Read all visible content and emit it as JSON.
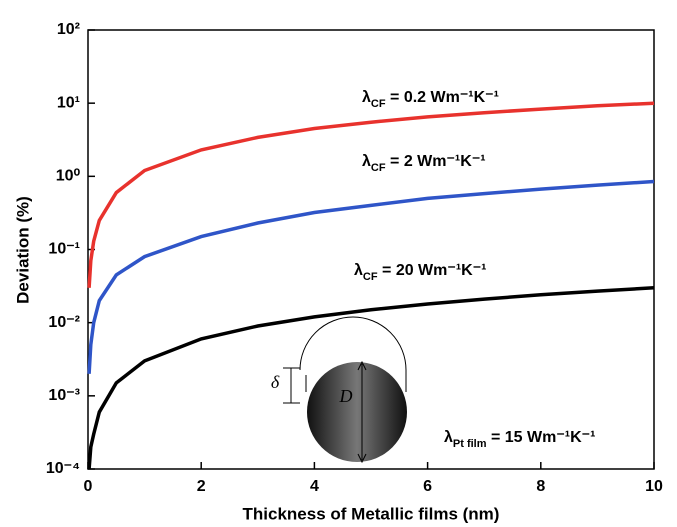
{
  "chart_data": {
    "type": "line",
    "x_label": "Thickness of Metallic films (nm)",
    "y_label": "Deviation (%)",
    "log_y": true,
    "xlim": [
      0,
      10
    ],
    "xticks": [
      0,
      2,
      4,
      6,
      8,
      10
    ],
    "ylim": [
      0.0001,
      100
    ],
    "yticks": [
      {
        "value": 0.0001,
        "label": "10⁻⁴"
      },
      {
        "value": 0.001,
        "label": "10⁻³"
      },
      {
        "value": 0.01,
        "label": "10⁻²"
      },
      {
        "value": 0.1,
        "label": "10⁻¹"
      },
      {
        "value": 1,
        "label": "10⁰"
      },
      {
        "value": 10,
        "label": "10¹"
      },
      {
        "value": 100,
        "label": "10²"
      }
    ],
    "x": [
      0.02,
      0.05,
      0.1,
      0.2,
      0.5,
      1,
      2,
      3,
      4,
      5,
      6,
      7,
      8,
      9,
      10
    ],
    "series": [
      {
        "color": "#e8322d",
        "values": [
          0.03,
          0.07,
          0.13,
          0.25,
          0.6,
          1.2,
          2.3,
          3.4,
          4.5,
          5.5,
          6.5,
          7.4,
          8.3,
          9.2,
          10
        ]
      },
      {
        "color": "#2f55c8",
        "values": [
          0.002,
          0.005,
          0.01,
          0.02,
          0.045,
          0.08,
          0.15,
          0.23,
          0.32,
          0.4,
          0.5,
          0.58,
          0.67,
          0.76,
          0.85
        ]
      },
      {
        "color": "#000000",
        "values": [
          0.0001,
          0.0002,
          0.0003,
          0.0006,
          0.0015,
          0.003,
          0.006,
          0.009,
          0.012,
          0.015,
          0.018,
          0.021,
          0.024,
          0.027,
          0.03
        ]
      }
    ],
    "annotations": [
      {
        "symbol": "λ",
        "subscript": "CF",
        "text": " = 0.2 Wm⁻¹K⁻¹"
      },
      {
        "symbol": "λ",
        "subscript": "CF",
        "text": " = 2 Wm⁻¹K⁻¹"
      },
      {
        "symbol": "λ",
        "subscript": "CF",
        "text": " = 20 Wm⁻¹K⁻¹"
      },
      {
        "symbol": "λ",
        "subscript": "Pt film",
        "text": " = 15 Wm⁻¹K⁻¹"
      }
    ],
    "inset_labels": [
      "δ",
      "D"
    ]
  }
}
